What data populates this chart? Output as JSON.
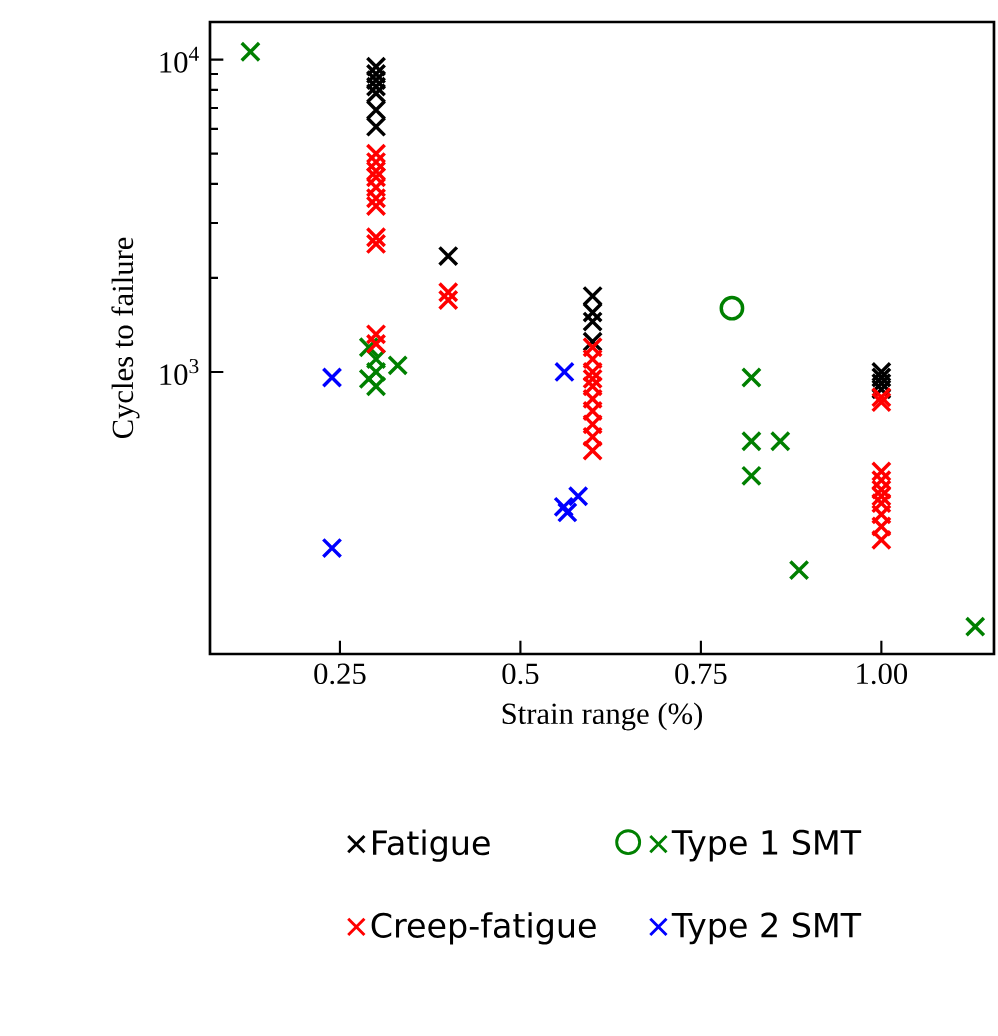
{
  "chart_data": {
    "type": "scatter",
    "xlabel": "Strain range (%)",
    "ylabel": "Cycles to failure",
    "log": "y",
    "legend": "bottom",
    "xlim": [
      0.07,
      1.156
    ],
    "ylim": [
      125,
      13200
    ],
    "xticks": [
      0.25,
      0.5,
      0.75,
      {
        "value": 1.0,
        "label": "1.00"
      }
    ],
    "yticks": [
      {
        "value": 1000,
        "label": "10$^{3}$"
      },
      {
        "value": 10000,
        "label": "10$^{4}$"
      }
    ],
    "series": [
      {
        "name": "Fatigue",
        "color": "#000000",
        "marker": "cross",
        "x": [
          0.3,
          0.3,
          0.3,
          0.3,
          0.3,
          0.3,
          0.3,
          0.4,
          0.6,
          0.6,
          0.6,
          0.6,
          1.0,
          1.0,
          1.0,
          1.0
        ],
        "values": [
          9500,
          9000,
          8600,
          8200,
          7800,
          6900,
          6100,
          2350,
          1750,
          1550,
          1450,
          1250,
          1000,
          960,
          920,
          880
        ]
      },
      {
        "name": "Type 1 SMT",
        "color": "#008000",
        "marker": "cross",
        "x": [
          0.126,
          0.29,
          0.3,
          0.3,
          0.29,
          0.3,
          0.33,
          0.82,
          0.82,
          0.86,
          0.82,
          0.886,
          1.13
        ],
        "values": [
          10600,
          1200,
          1100,
          1000,
          950,
          900,
          1050,
          960,
          600,
          600,
          465,
          232,
          153
        ]
      },
      {
        "color": "#008000",
        "marker": "circle",
        "x": [
          0.793
        ],
        "values": [
          1600
        ]
      },
      {
        "name": "Creep-fatigue",
        "color": "#ff0000",
        "marker": "cross",
        "x": [
          0.3,
          0.3,
          0.3,
          0.3,
          0.3,
          0.3,
          0.3,
          0.3,
          0.3,
          0.3,
          0.3,
          0.4,
          0.4,
          0.6,
          0.6,
          0.6,
          0.6,
          0.6,
          0.6,
          0.6,
          0.6,
          0.6,
          0.6,
          1.0,
          1.0,
          1.0,
          1.0,
          1.0,
          1.0,
          1.0,
          1.0,
          1.0,
          1.0
        ],
        "values": [
          5000,
          4700,
          4400,
          4200,
          3900,
          3600,
          3400,
          2700,
          2570,
          1320,
          1230,
          1800,
          1700,
          1200,
          1100,
          1000,
          950,
          900,
          820,
          750,
          680,
          620,
          560,
          830,
          800,
          480,
          450,
          420,
          400,
          380,
          350,
          320,
          290
        ]
      },
      {
        "name": "Type 2 SMT",
        "color": "#0000ff",
        "marker": "cross",
        "x": [
          0.239,
          0.239,
          0.561,
          0.56,
          0.565,
          0.58
        ],
        "values": [
          960,
          273,
          1000,
          370,
          355,
          400
        ]
      }
    ]
  }
}
